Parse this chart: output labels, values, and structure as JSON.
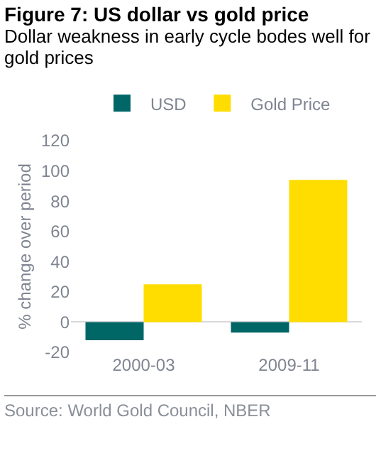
{
  "chart_data": {
    "type": "bar",
    "title": "Figure 7: US dollar vs gold price",
    "subtitle": "Dollar weakness in early cycle bodes well for gold prices",
    "ylabel": "% change over period",
    "categories": [
      "2000-03",
      "2009-11"
    ],
    "series": [
      {
        "name": "USD",
        "color": "#006666",
        "values": [
          -12,
          -7
        ]
      },
      {
        "name": "Gold Price",
        "color": "#ffdd00",
        "values": [
          25,
          94
        ]
      }
    ],
    "ylim": [
      -20,
      120
    ],
    "yticks": [
      -20,
      0,
      20,
      40,
      60,
      80,
      100,
      120
    ],
    "grid": false,
    "legend": "top",
    "annotations": [
      "Source: World Gold Council, NBER"
    ]
  }
}
